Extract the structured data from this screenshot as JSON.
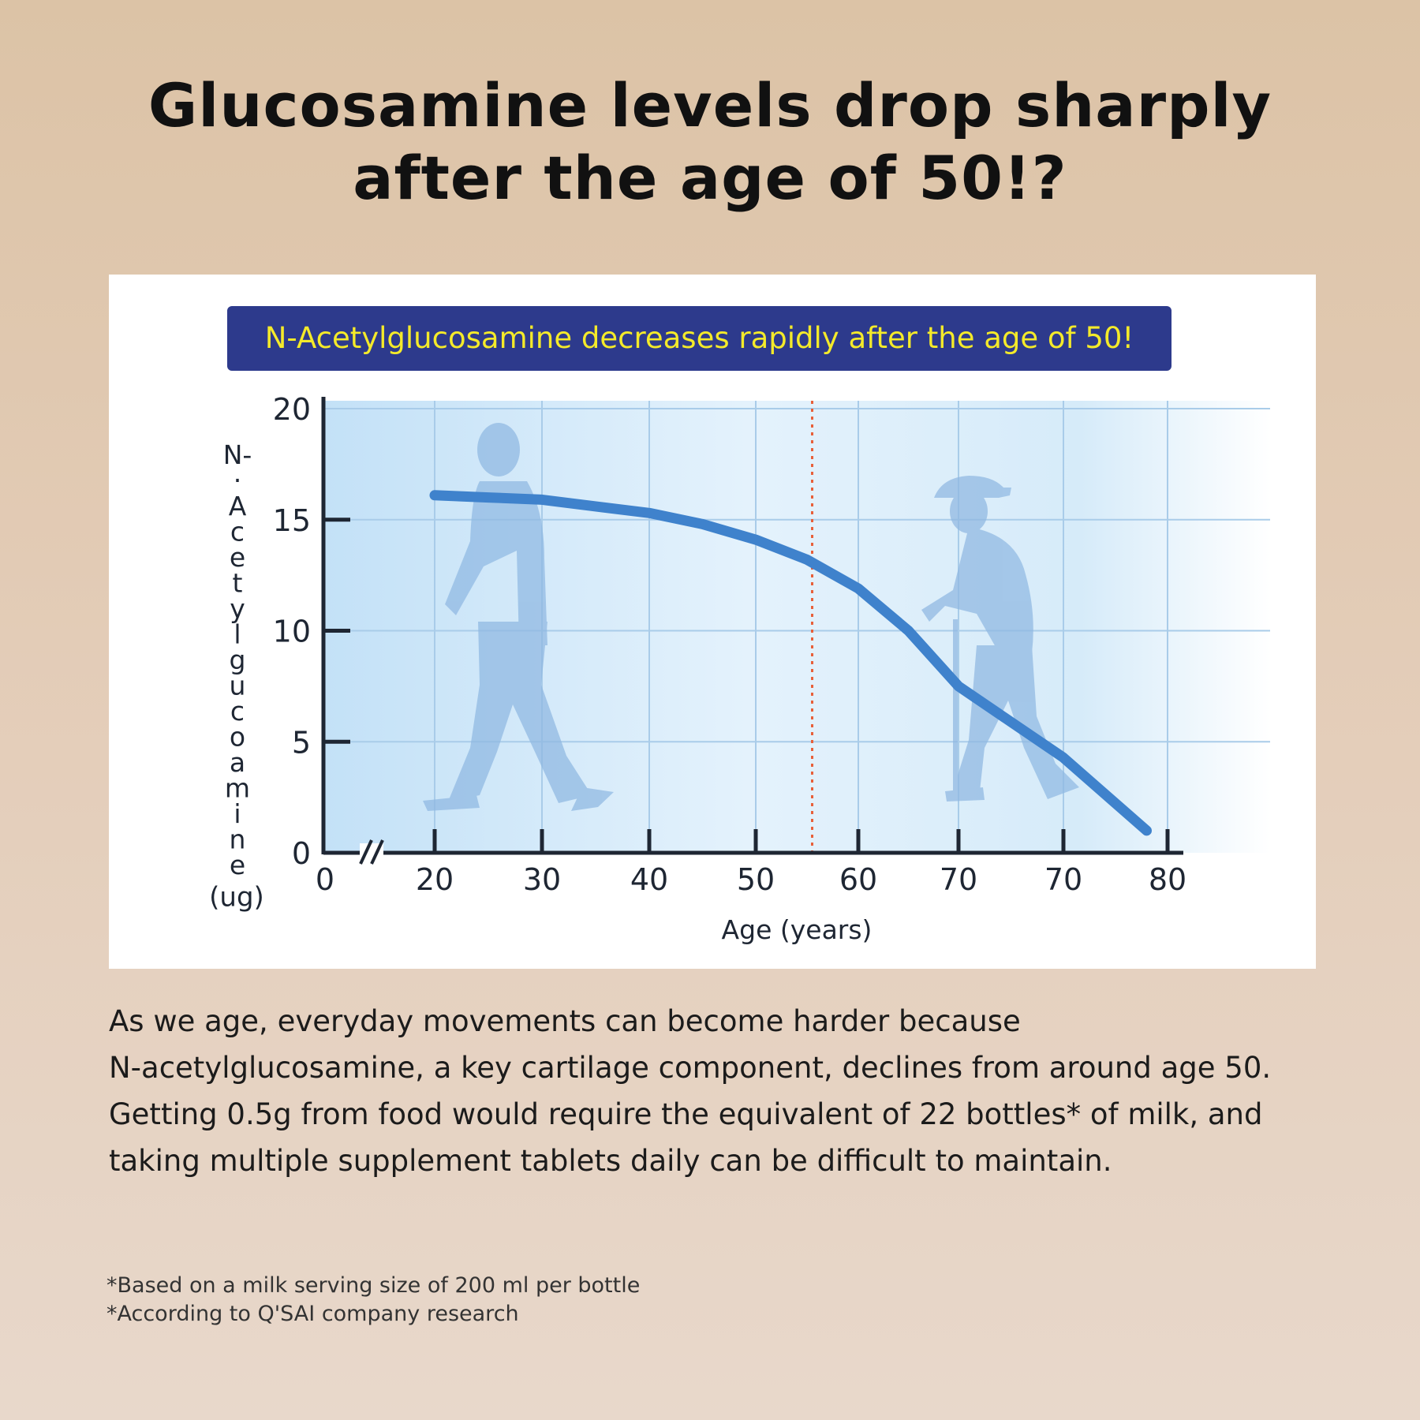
{
  "headline": {
    "line1": "Glucosamine levels drop sharply",
    "line2": "after the age of 50!?"
  },
  "banner_text": "N-Acetylglucosamine decreases rapidly after the age of 50!",
  "body": {
    "lines": [
      "As we age, everyday movements can become harder because",
      "N-acetylglucosamine, a key cartilage component, declines from around age 50.",
      "Getting 0.5g from food would require the equivalent of 22 bottles* of milk, and",
      "taking multiple supplement tablets daily can be difficult to maintain."
    ]
  },
  "footnotes": [
    "*Based on a milk serving size of 200 ml per bottle",
    "*According to Q'SAI company research"
  ],
  "colors": {
    "banner_bg": "#2d3a8c",
    "banner_text": "#f4ea2a",
    "curve": "#3f82cc",
    "marker_line": "#e8603a",
    "silhouette": "#8fb8e2"
  },
  "icons": [
    "young-walking-man-silhouette",
    "elderly-man-with-cane-silhouette"
  ],
  "chart_data": {
    "type": "line",
    "title": "",
    "xlabel": "Age (years)",
    "ylabel": [
      "N-",
      "·",
      "A",
      "c",
      "e",
      "t",
      "y",
      "l",
      "g",
      "u",
      "c",
      "o",
      "a",
      "m",
      "i",
      "n",
      "e",
      "(ug)"
    ],
    "x_ticks": [
      "0",
      "20",
      "30",
      "40",
      "50",
      "60",
      "70",
      "70",
      "80"
    ],
    "y_ticks": [
      "0",
      "5",
      "10",
      "15",
      "20"
    ],
    "ylim": [
      0,
      20
    ],
    "axis_break": true,
    "grid": true,
    "marker_line_x": 55.5,
    "series": [
      {
        "x": [
          20,
          25,
          30,
          35,
          40,
          45,
          50,
          55,
          60,
          65,
          70,
          75,
          79
        ],
        "values": [
          16.1,
          16.0,
          15.9,
          15.6,
          15.3,
          14.8,
          14.1,
          13.2,
          11.9,
          10.0,
          7.5,
          4.3,
          1.0
        ]
      }
    ]
  }
}
